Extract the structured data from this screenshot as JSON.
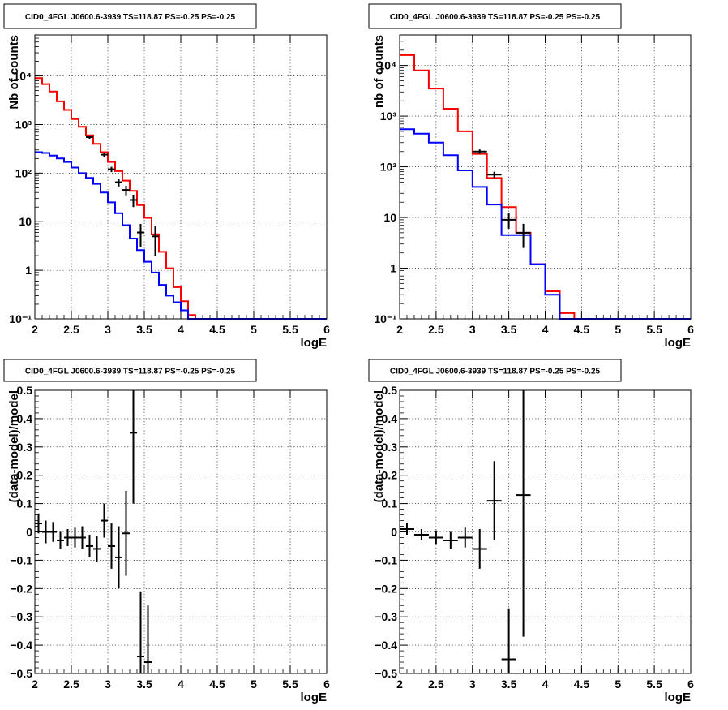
{
  "colors": {
    "model": "#ff0000",
    "background": "#0000ff",
    "data": "#000000"
  },
  "chart_data": [
    {
      "type": "line",
      "title": "CID0_4FGL J0600.6-3939 TS=118.87 PS=-0.25 PS=-0.25",
      "xlabel": "logE",
      "ylabel": "Nb of counts",
      "xlim": [
        2,
        6
      ],
      "ylim": [
        0.1,
        70000
      ],
      "log_y": true,
      "grid": true,
      "x_ticks": [
        "2",
        "2.5",
        "3",
        "3.5",
        "4",
        "4.5",
        "5",
        "5.5",
        "6"
      ],
      "y_ticks": [
        "10⁻¹",
        "1",
        "10",
        "10²",
        "10³",
        "10⁴"
      ],
      "bin_edges": [
        2.0,
        2.1,
        2.2,
        2.3,
        2.4,
        2.5,
        2.6,
        2.7,
        2.8,
        2.9,
        3.0,
        3.1,
        3.2,
        3.3,
        3.4,
        3.5,
        3.6,
        3.7,
        3.8,
        3.9,
        4.0,
        4.1,
        4.2,
        4.3,
        4.4,
        4.5,
        4.6,
        4.7,
        4.8,
        4.9,
        5.0,
        5.1,
        5.2,
        5.3,
        5.4,
        5.5,
        5.6,
        5.7,
        5.8,
        5.9,
        6.0
      ],
      "series": [
        {
          "style": "step",
          "color": "#ff0000",
          "values": [
            9000,
            6800,
            4800,
            3000,
            2000,
            1300,
            900,
            600,
            400,
            270,
            170,
            110,
            70,
            43,
            22,
            12,
            5.5,
            2.4,
            1.1,
            0.45,
            0.23,
            0.12,
            0.1,
            0.1,
            0.1,
            0.1,
            0.1,
            0.1,
            0.1,
            0.1,
            0.1,
            0.1,
            0.1,
            0.1,
            0.1,
            0.1,
            0.1,
            0.1,
            0.1,
            0.1
          ]
        },
        {
          "style": "step",
          "color": "#0000ff",
          "values": [
            270,
            260,
            230,
            200,
            170,
            130,
            100,
            80,
            60,
            40,
            25,
            15,
            8.5,
            4.5,
            2.6,
            1.5,
            0.9,
            0.5,
            0.3,
            0.22,
            0.15,
            0.1,
            0.1,
            0.1,
            0.1,
            0.1,
            0.1,
            0.1,
            0.1,
            0.1,
            0.1,
            0.1,
            0.1,
            0.1,
            0.1,
            0.1,
            0.1,
            0.1,
            0.1,
            0.1
          ]
        },
        {
          "style": "points",
          "color": "#000000",
          "x": [
            2.75,
            2.95,
            3.05,
            3.15,
            3.25,
            3.35,
            3.45,
            3.65
          ],
          "y": [
            550,
            240,
            120,
            65,
            45,
            28,
            6,
            5
          ],
          "err": [
            40,
            25,
            15,
            12,
            10,
            8,
            3,
            3
          ]
        }
      ]
    },
    {
      "type": "line",
      "title": "CID0_4FGL J0600.6-3939 TS=118.87 PS=-0.25 PS=-0.25",
      "xlabel": "logE",
      "ylabel": "nb of counts",
      "xlim": [
        2,
        6
      ],
      "ylim": [
        0.1,
        40000
      ],
      "log_y": true,
      "grid": true,
      "x_ticks": [
        "2",
        "2.5",
        "3",
        "3.5",
        "4",
        "4.5",
        "5",
        "5.5",
        "6"
      ],
      "y_ticks": [
        "10⁻¹",
        "1",
        "10",
        "10²",
        "10³",
        "10⁴"
      ],
      "bin_edges": [
        2.0,
        2.2,
        2.4,
        2.6,
        2.8,
        3.0,
        3.2,
        3.4,
        3.6,
        3.8,
        4.0,
        4.2,
        4.4,
        4.6,
        4.8,
        5.0,
        5.2,
        5.4,
        5.6,
        5.8,
        6.0
      ],
      "series": [
        {
          "style": "step",
          "color": "#ff0000",
          "values": [
            16000,
            8000,
            3500,
            1400,
            500,
            180,
            60,
            16,
            5,
            1.2,
            0.35,
            0.13,
            0.1,
            0.1,
            0.1,
            0.1,
            0.1,
            0.1,
            0.1,
            0.1
          ]
        },
        {
          "style": "step",
          "color": "#0000ff",
          "values": [
            550,
            450,
            300,
            170,
            85,
            40,
            18,
            4.5,
            4.5,
            1.2,
            0.3,
            0.1,
            0.1,
            0.1,
            0.1,
            0.1,
            0.1,
            0.1,
            0.1,
            0.1
          ]
        },
        {
          "style": "points",
          "color": "#000000",
          "x": [
            3.1,
            3.3,
            3.5,
            3.7
          ],
          "y": [
            200,
            70,
            9,
            5
          ],
          "err": [
            20,
            10,
            3,
            2.5
          ]
        }
      ]
    },
    {
      "type": "scatter",
      "title": "CID0_4FGL J0600.6-3939 TS=118.87 PS=-0.25 PS=-0.25",
      "xlabel": "logE",
      "ylabel": "(data-model)/model",
      "xlim": [
        2,
        6
      ],
      "ylim": [
        -0.5,
        0.5
      ],
      "grid": true,
      "x_ticks": [
        "2",
        "2.5",
        "3",
        "3.5",
        "4",
        "4.5",
        "5",
        "5.5",
        "6"
      ],
      "y_ticks": [
        "−0.5",
        "−0.4",
        "−0.3",
        "−0.2",
        "−0.1",
        "0",
        "0.1",
        "0.2",
        "0.3",
        "0.4",
        "0.5"
      ],
      "series": [
        {
          "style": "errorbars",
          "color": "#000000",
          "xhalf": 0.05,
          "x": [
            2.05,
            2.15,
            2.25,
            2.35,
            2.45,
            2.55,
            2.65,
            2.75,
            2.85,
            2.95,
            3.05,
            3.15,
            3.25,
            3.35,
            3.45,
            3.55
          ],
          "y": [
            0.03,
            0.0,
            0.0,
            -0.03,
            -0.02,
            -0.02,
            -0.02,
            -0.05,
            -0.06,
            0.04,
            -0.05,
            -0.09,
            -0.005,
            0.35,
            -0.44,
            -0.46
          ],
          "err": [
            0.035,
            0.04,
            0.035,
            0.03,
            0.03,
            0.035,
            0.04,
            0.04,
            0.045,
            0.06,
            0.08,
            0.11,
            0.15,
            0.25,
            0.23,
            0.2
          ]
        }
      ]
    },
    {
      "type": "scatter",
      "title": "CID0_4FGL J0600.6-3939 TS=118.87 PS=-0.25 PS=-0.25",
      "xlabel": "logE",
      "ylabel": "(data-model)/model",
      "xlim": [
        2,
        6
      ],
      "ylim": [
        -0.5,
        0.5
      ],
      "grid": true,
      "x_ticks": [
        "2",
        "2.5",
        "3",
        "3.5",
        "4",
        "4.5",
        "5",
        "5.5",
        "6"
      ],
      "y_ticks": [
        "−0.5",
        "−0.4",
        "−0.3",
        "−0.2",
        "−0.1",
        "0",
        "0.1",
        "0.2",
        "0.3",
        "0.4",
        "0.5"
      ],
      "series": [
        {
          "style": "errorbars",
          "color": "#000000",
          "xhalf": 0.1,
          "x": [
            2.1,
            2.3,
            2.5,
            2.7,
            2.9,
            3.1,
            3.3,
            3.5,
            3.7
          ],
          "y": [
            0.01,
            -0.01,
            -0.02,
            -0.03,
            -0.02,
            -0.06,
            0.11,
            -0.45,
            0.13
          ],
          "err": [
            0.02,
            0.02,
            0.025,
            0.03,
            0.035,
            0.07,
            0.14,
            0.18,
            0.5
          ]
        }
      ]
    }
  ]
}
